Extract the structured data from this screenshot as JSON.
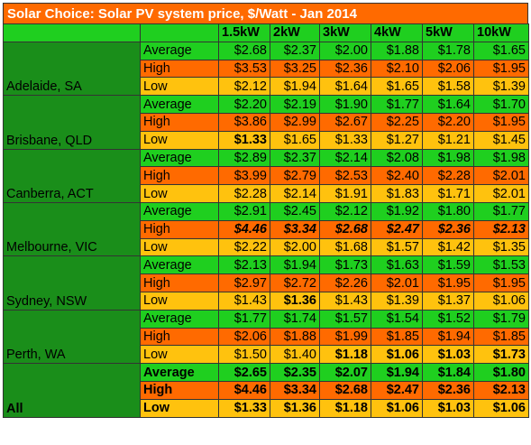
{
  "title": "Solar Choice: Solar PV system price, $/Watt - Jan 2014",
  "columns": [
    "1.5kW",
    "2kW",
    "3kW",
    "4kW",
    "5kW",
    "10kW"
  ],
  "groups": [
    {
      "location": "Adelaide, SA",
      "rows": [
        {
          "label": "Average",
          "type": "avg",
          "values": [
            "$2.68",
            "$2.37",
            "$2.00",
            "$1.88",
            "$1.78",
            "$1.65"
          ],
          "style": [
            "",
            "",
            "",
            "",
            "",
            ""
          ]
        },
        {
          "label": "High",
          "type": "high",
          "values": [
            "$3.53",
            "$3.25",
            "$2.36",
            "$2.10",
            "$2.06",
            "$1.95"
          ],
          "style": [
            "",
            "",
            "",
            "",
            "",
            ""
          ]
        },
        {
          "label": "Low",
          "type": "low",
          "values": [
            "$2.12",
            "$1.94",
            "$1.64",
            "$1.65",
            "$1.58",
            "$1.39"
          ],
          "style": [
            "",
            "",
            "",
            "",
            "",
            ""
          ]
        }
      ]
    },
    {
      "location": "Brisbane, QLD",
      "rows": [
        {
          "label": "Average",
          "type": "avg",
          "values": [
            "$2.20",
            "$2.19",
            "$1.90",
            "$1.77",
            "$1.64",
            "$1.70"
          ],
          "style": [
            "",
            "",
            "",
            "",
            "",
            ""
          ]
        },
        {
          "label": "High",
          "type": "high",
          "values": [
            "$3.86",
            "$2.99",
            "$2.67",
            "$2.25",
            "$2.20",
            "$1.95"
          ],
          "style": [
            "",
            "",
            "",
            "",
            "",
            ""
          ]
        },
        {
          "label": "Low",
          "type": "low",
          "values": [
            "$1.33",
            "$1.65",
            "$1.33",
            "$1.27",
            "$1.21",
            "$1.45"
          ],
          "style": [
            "b",
            "",
            "",
            "",
            "",
            ""
          ]
        }
      ]
    },
    {
      "location": "Canberra, ACT",
      "rows": [
        {
          "label": "Average",
          "type": "avg",
          "values": [
            "$2.89",
            "$2.37",
            "$2.14",
            "$2.08",
            "$1.98",
            "$1.98"
          ],
          "style": [
            "",
            "",
            "",
            "",
            "",
            ""
          ]
        },
        {
          "label": "High",
          "type": "high",
          "values": [
            "$3.99",
            "$2.79",
            "$2.53",
            "$2.40",
            "$2.28",
            "$2.01"
          ],
          "style": [
            "",
            "",
            "",
            "",
            "",
            ""
          ]
        },
        {
          "label": "Low",
          "type": "low",
          "values": [
            "$2.28",
            "$2.14",
            "$1.91",
            "$1.83",
            "$1.71",
            "$2.01"
          ],
          "style": [
            "",
            "",
            "",
            "",
            "",
            ""
          ]
        }
      ]
    },
    {
      "location": "Melbourne, VIC",
      "rows": [
        {
          "label": "Average",
          "type": "avg",
          "values": [
            "$2.91",
            "$2.45",
            "$2.12",
            "$1.92",
            "$1.80",
            "$1.77"
          ],
          "style": [
            "",
            "",
            "",
            "",
            "",
            ""
          ]
        },
        {
          "label": "High",
          "type": "high",
          "values": [
            "$4.46",
            "$3.34",
            "$2.68",
            "$2.47",
            "$2.36",
            "$2.13"
          ],
          "style": [
            "bi",
            "bi",
            "bi",
            "bi",
            "bi",
            "bi"
          ]
        },
        {
          "label": "Low",
          "type": "low",
          "values": [
            "$2.22",
            "$2.00",
            "$1.68",
            "$1.57",
            "$1.42",
            "$1.35"
          ],
          "style": [
            "",
            "",
            "",
            "",
            "",
            ""
          ]
        }
      ]
    },
    {
      "location": "Sydney, NSW",
      "rows": [
        {
          "label": "Average",
          "type": "avg",
          "values": [
            "$2.13",
            "$1.94",
            "$1.73",
            "$1.63",
            "$1.59",
            "$1.53"
          ],
          "style": [
            "",
            "",
            "",
            "",
            "",
            ""
          ]
        },
        {
          "label": "High",
          "type": "high",
          "values": [
            "$2.97",
            "$2.72",
            "$2.26",
            "$2.01",
            "$1.95",
            "$1.95"
          ],
          "style": [
            "",
            "",
            "",
            "",
            "",
            ""
          ]
        },
        {
          "label": "Low",
          "type": "low",
          "values": [
            "$1.43",
            "$1.36",
            "$1.43",
            "$1.39",
            "$1.37",
            "$1.06"
          ],
          "style": [
            "",
            "b",
            "",
            "",
            "",
            ""
          ]
        }
      ]
    },
    {
      "location": "Perth, WA",
      "rows": [
        {
          "label": "Average",
          "type": "avg",
          "values": [
            "$1.77",
            "$1.74",
            "$1.57",
            "$1.54",
            "$1.52",
            "$1.79"
          ],
          "style": [
            "",
            "",
            "",
            "",
            "",
            ""
          ]
        },
        {
          "label": "High",
          "type": "high",
          "values": [
            "$2.06",
            "$1.88",
            "$1.99",
            "$1.85",
            "$1.94",
            "$1.85"
          ],
          "style": [
            "",
            "",
            "",
            "",
            "",
            ""
          ]
        },
        {
          "label": "Low",
          "type": "low",
          "values": [
            "$1.50",
            "$1.40",
            "$1.18",
            "$1.06",
            "$1.03",
            "$1.73"
          ],
          "style": [
            "",
            "",
            "b",
            "b",
            "b",
            "b"
          ]
        }
      ]
    },
    {
      "location": "All",
      "summary": true,
      "rows": [
        {
          "label": "Average",
          "type": "avg",
          "values": [
            "$2.65",
            "$2.35",
            "$2.07",
            "$1.94",
            "$1.84",
            "$1.80"
          ],
          "style": [
            "b",
            "b",
            "b",
            "b",
            "b",
            "b"
          ]
        },
        {
          "label": "High",
          "type": "high",
          "values": [
            "$4.46",
            "$3.34",
            "$2.68",
            "$2.47",
            "$2.36",
            "$2.13"
          ],
          "style": [
            "b",
            "b",
            "b",
            "b",
            "b",
            "b"
          ]
        },
        {
          "label": "Low",
          "type": "low",
          "values": [
            "$1.33",
            "$1.36",
            "$1.18",
            "$1.06",
            "$1.03",
            "$1.06"
          ],
          "style": [
            "b",
            "b",
            "b",
            "b",
            "b",
            "b"
          ]
        }
      ]
    }
  ],
  "colors": {
    "title_bg": "#ff6a00",
    "header_bg": "#1fcf1f",
    "location_bg": "#1a8e1a",
    "average_bg": "#1fcf1f",
    "high_bg": "#ff6a00",
    "low_bg": "#ffc20e"
  }
}
